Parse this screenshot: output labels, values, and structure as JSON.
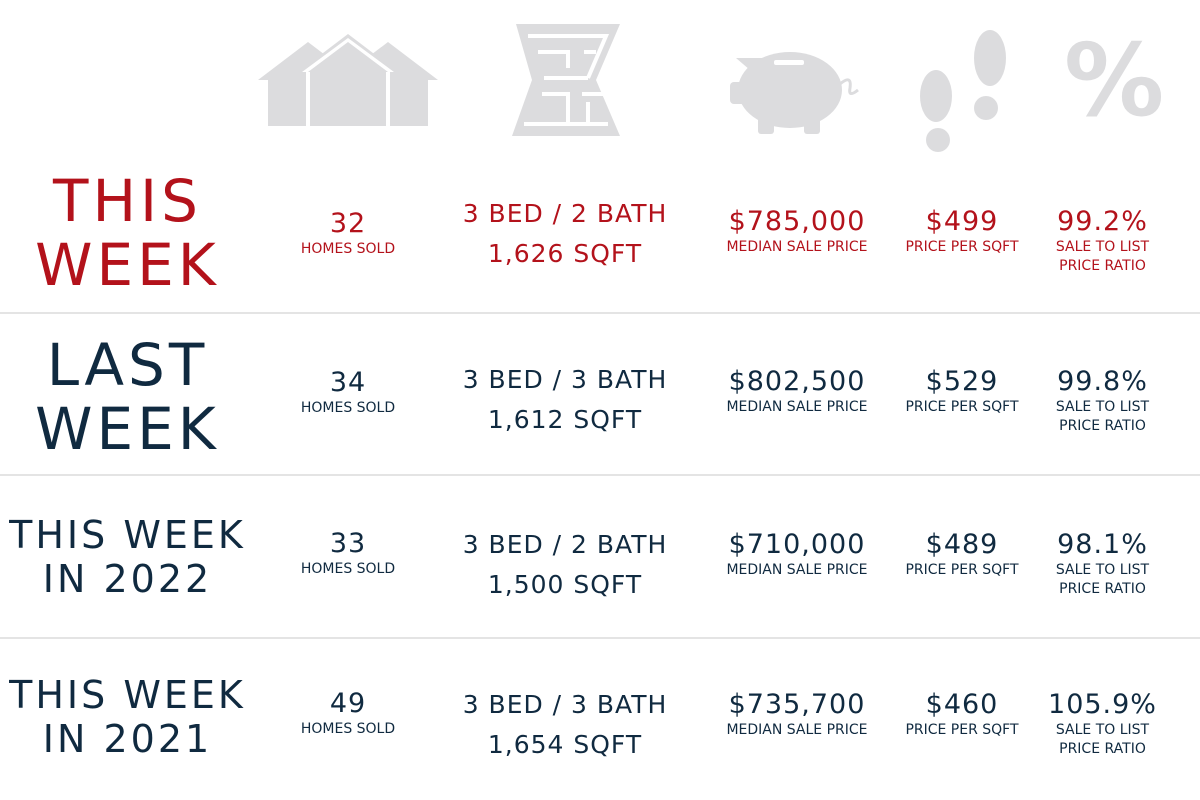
{
  "colors": {
    "highlight": "#b3121b",
    "text": "#102a40",
    "icon": "#dcdcde",
    "divider": "#e4e4e4"
  },
  "icons": [
    "house-icon",
    "floor-plan-icon",
    "piggy-bank-icon",
    "footprints-icon",
    "percent-icon"
  ],
  "percent_glyph": "%",
  "rows": [
    {
      "label_line1": "THIS",
      "label_line2": "WEEK",
      "homes_sold": "32",
      "homes_sold_label": "HOMES SOLD",
      "bed_bath": "3 BED / 2 BATH",
      "sqft": "1,626 SQFT",
      "median_price": "$785,000",
      "median_label": "MEDIAN SALE PRICE",
      "price_sqft": "$499",
      "price_sqft_label": "PRICE PER SQFT",
      "ratio": "99.2%",
      "ratio_label1": "SALE TO LIST",
      "ratio_label2": "PRICE RATIO"
    },
    {
      "label_line1": "LAST",
      "label_line2": "WEEK",
      "homes_sold": "34",
      "homes_sold_label": "HOMES SOLD",
      "bed_bath": "3 BED / 3 BATH",
      "sqft": "1,612 SQFT",
      "median_price": "$802,500",
      "median_label": "MEDIAN SALE PRICE",
      "price_sqft": "$529",
      "price_sqft_label": "PRICE PER SQFT",
      "ratio": "99.8%",
      "ratio_label1": "SALE TO LIST",
      "ratio_label2": "PRICE RATIO"
    },
    {
      "label_line1": "THIS WEEK",
      "label_line2": "IN 2022",
      "homes_sold": "33",
      "homes_sold_label": "HOMES SOLD",
      "bed_bath": "3 BED / 2 BATH",
      "sqft": "1,500 SQFT",
      "median_price": "$710,000",
      "median_label": "MEDIAN SALE PRICE",
      "price_sqft": "$489",
      "price_sqft_label": "PRICE PER SQFT",
      "ratio": "98.1%",
      "ratio_label1": "SALE TO LIST",
      "ratio_label2": "PRICE RATIO"
    },
    {
      "label_line1": "THIS WEEK",
      "label_line2": "IN 2021",
      "homes_sold": "49",
      "homes_sold_label": "HOMES SOLD",
      "bed_bath": "3 BED / 3 BATH",
      "sqft": "1,654 SQFT",
      "median_price": "$735,700",
      "median_label": "MEDIAN SALE PRICE",
      "price_sqft": "$460",
      "price_sqft_label": "PRICE PER SQFT",
      "ratio": "105.9%",
      "ratio_label1": "SALE TO LIST",
      "ratio_label2": "PRICE RATIO"
    }
  ]
}
